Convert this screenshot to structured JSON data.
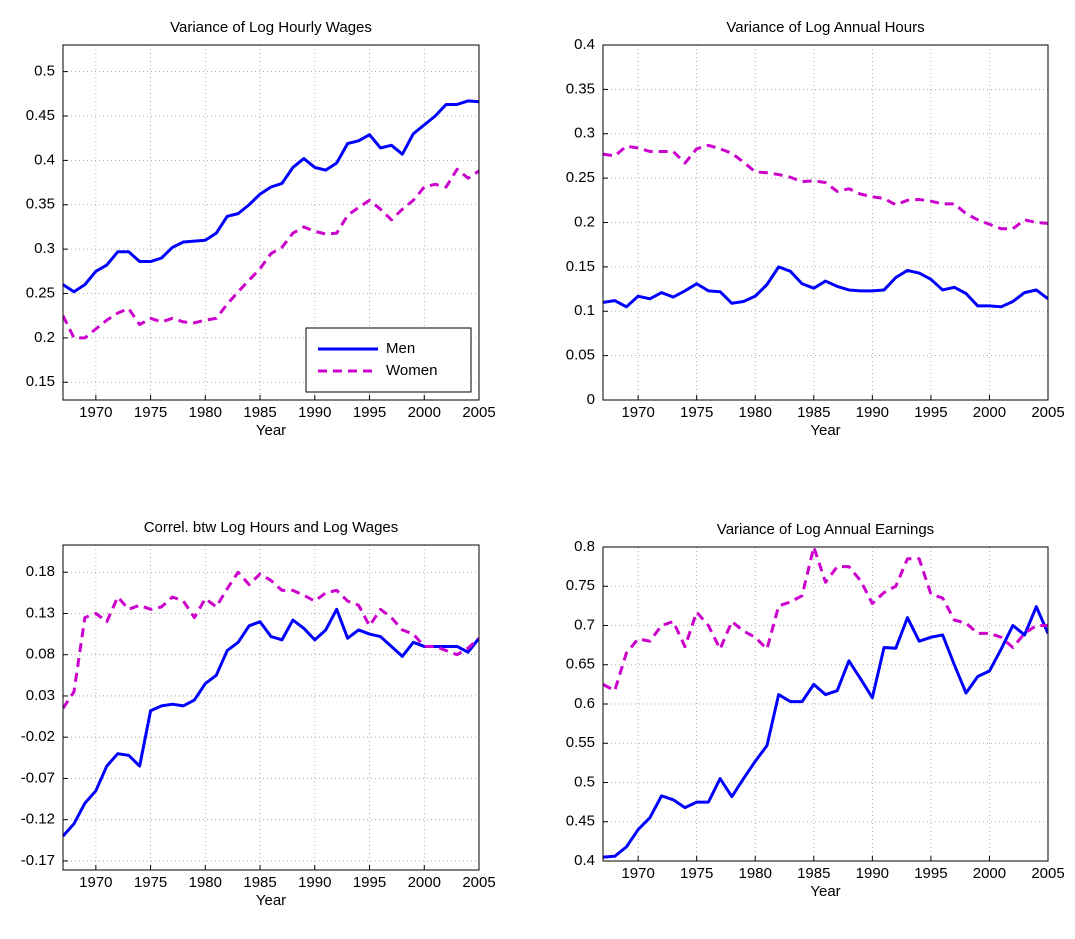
{
  "chart_data": [
    {
      "type": "line",
      "title": "Variance of Log Hourly Wages",
      "xlabel": "Year",
      "x": [
        1967,
        1968,
        1969,
        1970,
        1971,
        1972,
        1973,
        1974,
        1975,
        1976,
        1977,
        1978,
        1979,
        1980,
        1981,
        1982,
        1983,
        1984,
        1985,
        1986,
        1987,
        1988,
        1989,
        1990,
        1991,
        1992,
        1993,
        1994,
        1995,
        1996,
        1997,
        1998,
        1999,
        2000,
        2001,
        2002,
        2003,
        2004,
        2005
      ],
      "xlim": [
        1967,
        2005
      ],
      "xticks": [
        1970,
        1975,
        1980,
        1985,
        1990,
        1995,
        2000,
        2005
      ],
      "ylim": [
        0.13,
        0.53
      ],
      "yticks": [
        0.15,
        0.2,
        0.25,
        0.3,
        0.35,
        0.4,
        0.45,
        0.5
      ],
      "grid": true,
      "legend": "lower right",
      "series": [
        {
          "name": "Men",
          "color": "#0000ff",
          "values": [
            0.26,
            0.252,
            0.26,
            0.275,
            0.282,
            0.297,
            0.297,
            0.286,
            0.286,
            0.29,
            0.302,
            0.308,
            0.309,
            0.31,
            0.318,
            0.337,
            0.34,
            0.35,
            0.362,
            0.37,
            0.374,
            0.392,
            0.402,
            0.392,
            0.389,
            0.397,
            0.419,
            0.422,
            0.429,
            0.414,
            0.417,
            0.407,
            0.43,
            0.44,
            0.45,
            0.463,
            0.463,
            0.467,
            0.466
          ]
        },
        {
          "name": "Women",
          "color": "#cc00cc",
          "dashed": true,
          "values": [
            0.225,
            0.2,
            0.2,
            0.21,
            0.22,
            0.228,
            0.233,
            0.215,
            0.222,
            0.218,
            0.222,
            0.218,
            0.217,
            0.22,
            0.222,
            0.238,
            0.252,
            0.265,
            0.278,
            0.295,
            0.302,
            0.318,
            0.325,
            0.32,
            0.317,
            0.318,
            0.338,
            0.347,
            0.355,
            0.345,
            0.333,
            0.345,
            0.355,
            0.37,
            0.373,
            0.37,
            0.39,
            0.38,
            0.388
          ]
        }
      ]
    },
    {
      "type": "line",
      "title": "Variance of Log Annual Hours",
      "xlabel": "Year",
      "x": [
        1967,
        1968,
        1969,
        1970,
        1971,
        1972,
        1973,
        1974,
        1975,
        1976,
        1977,
        1978,
        1979,
        1980,
        1981,
        1982,
        1983,
        1984,
        1985,
        1986,
        1987,
        1988,
        1989,
        1990,
        1991,
        1992,
        1993,
        1994,
        1995,
        1996,
        1997,
        1998,
        1999,
        2000,
        2001,
        2002,
        2003,
        2004,
        2005
      ],
      "xlim": [
        1967,
        2005
      ],
      "xticks": [
        1970,
        1975,
        1980,
        1985,
        1990,
        1995,
        2000,
        2005
      ],
      "ylim": [
        0,
        0.4
      ],
      "yticks": [
        0,
        0.05,
        0.1,
        0.15,
        0.2,
        0.25,
        0.3,
        0.35,
        0.4
      ],
      "grid": true,
      "series": [
        {
          "color": "#0000ff",
          "values": [
            0.11,
            0.112,
            0.105,
            0.117,
            0.114,
            0.121,
            0.116,
            0.123,
            0.131,
            0.123,
            0.122,
            0.109,
            0.111,
            0.117,
            0.13,
            0.15,
            0.145,
            0.131,
            0.126,
            0.134,
            0.128,
            0.124,
            0.123,
            0.123,
            0.124,
            0.138,
            0.146,
            0.143,
            0.136,
            0.124,
            0.127,
            0.12,
            0.106,
            0.106,
            0.105,
            0.111,
            0.121,
            0.124,
            0.114
          ]
        },
        {
          "color": "#cc00cc",
          "dashed": true,
          "values": [
            0.277,
            0.275,
            0.286,
            0.284,
            0.28,
            0.28,
            0.28,
            0.267,
            0.283,
            0.287,
            0.283,
            0.278,
            0.268,
            0.257,
            0.256,
            0.254,
            0.251,
            0.246,
            0.247,
            0.245,
            0.235,
            0.238,
            0.232,
            0.229,
            0.227,
            0.22,
            0.225,
            0.226,
            0.224,
            0.221,
            0.221,
            0.21,
            0.203,
            0.198,
            0.193,
            0.193,
            0.203,
            0.2,
            0.199
          ]
        }
      ]
    },
    {
      "type": "line",
      "title": "Correl. btw Log Hours and Log Wages",
      "xlabel": "Year",
      "x": [
        1967,
        1968,
        1969,
        1970,
        1971,
        1972,
        1973,
        1974,
        1975,
        1976,
        1977,
        1978,
        1979,
        1980,
        1981,
        1982,
        1983,
        1984,
        1985,
        1986,
        1987,
        1988,
        1989,
        1990,
        1991,
        1992,
        1993,
        1994,
        1995,
        1996,
        1997,
        1998,
        1999,
        2000,
        2001,
        2002,
        2003,
        2004,
        2005
      ],
      "xlim": [
        1967,
        2005
      ],
      "xticks": [
        1970,
        1975,
        1980,
        1985,
        1990,
        1995,
        2000,
        2005
      ],
      "ylim": [
        -0.181,
        0.213
      ],
      "yticks": [
        -0.17,
        -0.12,
        -0.07,
        -0.02,
        0.03,
        0.08,
        0.13,
        0.18
      ],
      "grid": true,
      "series": [
        {
          "color": "#0000ff",
          "values": [
            -0.14,
            -0.125,
            -0.1,
            -0.085,
            -0.055,
            -0.04,
            -0.042,
            -0.055,
            0.012,
            0.018,
            0.02,
            0.018,
            0.025,
            0.045,
            0.055,
            0.085,
            0.095,
            0.115,
            0.12,
            0.102,
            0.098,
            0.122,
            0.112,
            0.098,
            0.11,
            0.135,
            0.1,
            0.11,
            0.105,
            0.102,
            0.09,
            0.078,
            0.095,
            0.09,
            0.09,
            0.09,
            0.09,
            0.083,
            0.1
          ]
        },
        {
          "color": "#cc00cc",
          "dashed": true,
          "values": [
            0.015,
            0.035,
            0.125,
            0.13,
            0.12,
            0.15,
            0.135,
            0.14,
            0.135,
            0.138,
            0.15,
            0.145,
            0.125,
            0.148,
            0.138,
            0.16,
            0.18,
            0.165,
            0.178,
            0.17,
            0.158,
            0.158,
            0.152,
            0.145,
            0.155,
            0.158,
            0.145,
            0.14,
            0.115,
            0.135,
            0.125,
            0.11,
            0.105,
            0.09,
            0.09,
            0.085,
            0.08,
            0.088,
            0.1
          ]
        }
      ]
    },
    {
      "type": "line",
      "title": "Variance of Log Annual Earnings",
      "xlabel": "Year",
      "x": [
        1967,
        1968,
        1969,
        1970,
        1971,
        1972,
        1973,
        1974,
        1975,
        1976,
        1977,
        1978,
        1979,
        1980,
        1981,
        1982,
        1983,
        1984,
        1985,
        1986,
        1987,
        1988,
        1989,
        1990,
        1991,
        1992,
        1993,
        1994,
        1995,
        1996,
        1997,
        1998,
        1999,
        2000,
        2001,
        2002,
        2003,
        2004,
        2005
      ],
      "xlim": [
        1967,
        2005
      ],
      "xticks": [
        1970,
        1975,
        1980,
        1985,
        1990,
        1995,
        2000,
        2005
      ],
      "ylim": [
        0.4,
        0.8
      ],
      "yticks": [
        0.4,
        0.45,
        0.5,
        0.55,
        0.6,
        0.65,
        0.7,
        0.75,
        0.8
      ],
      "grid": true,
      "series": [
        {
          "color": "#0000ff",
          "values": [
            0.405,
            0.406,
            0.418,
            0.44,
            0.455,
            0.483,
            0.478,
            0.468,
            0.475,
            0.475,
            0.505,
            0.482,
            0.505,
            0.527,
            0.547,
            0.612,
            0.603,
            0.603,
            0.625,
            0.612,
            0.617,
            0.655,
            0.632,
            0.608,
            0.672,
            0.671,
            0.71,
            0.68,
            0.685,
            0.688,
            0.65,
            0.614,
            0.635,
            0.642,
            0.67,
            0.7,
            0.688,
            0.724,
            0.69
          ]
        },
        {
          "color": "#cc00cc",
          "dashed": true,
          "values": [
            0.625,
            0.617,
            0.665,
            0.683,
            0.68,
            0.7,
            0.705,
            0.673,
            0.717,
            0.7,
            0.67,
            0.705,
            0.693,
            0.685,
            0.67,
            0.725,
            0.73,
            0.738,
            0.8,
            0.755,
            0.775,
            0.775,
            0.757,
            0.728,
            0.742,
            0.75,
            0.785,
            0.785,
            0.74,
            0.735,
            0.707,
            0.703,
            0.69,
            0.69,
            0.685,
            0.672,
            0.69,
            0.7,
            0.7
          ]
        }
      ]
    }
  ]
}
